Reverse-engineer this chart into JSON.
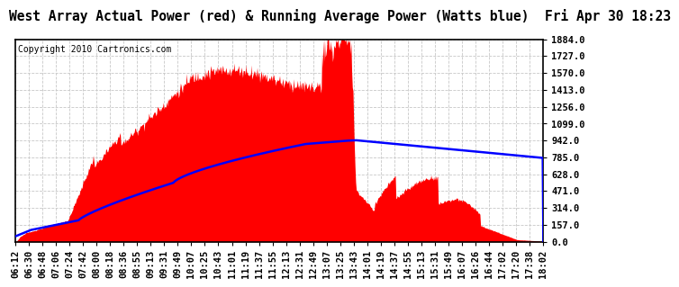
{
  "title": "West Array Actual Power (red) & Running Average Power (Watts blue)  Fri Apr 30 18:23",
  "copyright": "Copyright 2010 Cartronics.com",
  "background_color": "#ffffff",
  "plot_bg_color": "#ffffff",
  "grid_color": "#c8c8c8",
  "yticks": [
    0.0,
    157.0,
    314.0,
    471.0,
    628.0,
    785.0,
    942.0,
    1099.0,
    1256.0,
    1413.0,
    1570.0,
    1727.0,
    1884.0
  ],
  "ymin": 0.0,
  "ymax": 1884.0,
  "xtick_labels": [
    "06:12",
    "06:30",
    "06:48",
    "07:06",
    "07:24",
    "07:42",
    "08:00",
    "08:18",
    "08:36",
    "08:55",
    "09:13",
    "09:31",
    "09:49",
    "10:07",
    "10:25",
    "10:43",
    "11:01",
    "11:19",
    "11:37",
    "11:55",
    "12:13",
    "12:31",
    "12:49",
    "13:07",
    "13:25",
    "13:43",
    "14:01",
    "14:19",
    "14:37",
    "14:55",
    "15:13",
    "15:31",
    "15:49",
    "16:07",
    "16:26",
    "16:44",
    "17:02",
    "17:20",
    "17:38",
    "18:02"
  ],
  "title_fontsize": 10.5,
  "copyright_fontsize": 7,
  "tick_fontsize": 7.5
}
